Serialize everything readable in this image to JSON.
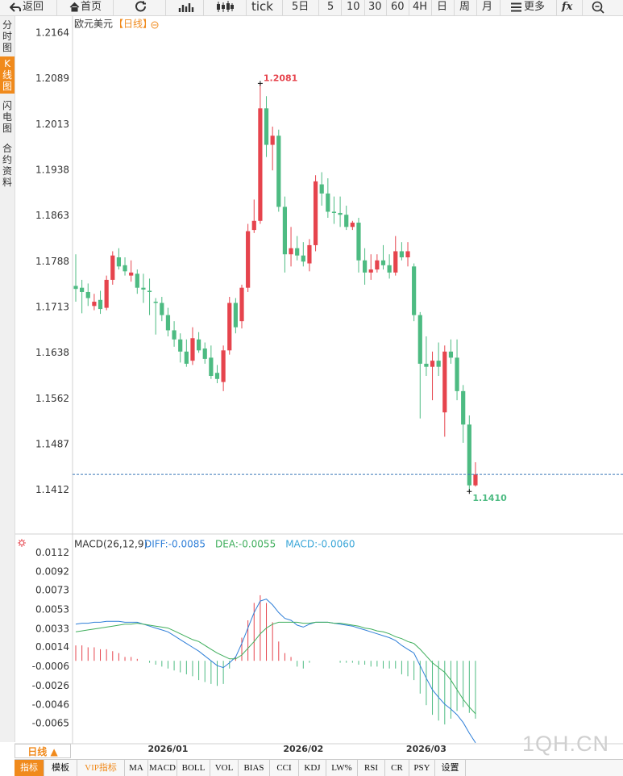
{
  "toolbar": [
    "返回",
    "首页",
    "tick",
    "5日",
    "5",
    "10",
    "30",
    "60",
    "4H",
    "日",
    "周",
    "月",
    "更多",
    "fx"
  ],
  "sidebar": [
    "分时图",
    "K线图",
    "闪电图",
    "合约资料"
  ],
  "chart_data": [
    {
      "type": "candlestick",
      "title": "欧元美元",
      "subtitle": "【日线】",
      "categories": [
        null,
        null,
        null,
        null,
        null,
        null,
        null,
        null,
        null,
        null,
        null,
        null,
        null,
        null,
        null,
        "2026/01",
        null,
        null,
        null,
        null,
        null,
        null,
        null,
        null,
        null,
        null,
        null,
        null,
        null,
        null,
        null,
        null,
        null,
        null,
        null,
        null,
        null,
        "2026/02",
        null,
        null,
        null,
        null,
        null,
        null,
        null,
        null,
        null,
        null,
        null,
        null,
        null,
        null,
        null,
        null,
        null,
        null,
        null,
        "2026/03",
        null,
        null,
        null,
        null,
        null,
        null,
        null,
        null
      ],
      "open": [
        1.1748,
        1.1745,
        1.1738,
        1.1715,
        1.1725,
        1.1712,
        1.1758,
        1.1795,
        1.1782,
        1.1765,
        1.1768,
        1.1745,
        1.174,
        1.1722,
        1.172,
        1.17,
        1.1675,
        1.166,
        1.164,
        1.1625,
        1.166,
        1.1645,
        1.163,
        1.1605,
        1.159,
        1.1642,
        1.172,
        1.169,
        1.1745,
        1.184,
        1.1855,
        1.204,
        1.198,
        1.1995,
        1.1878,
        1.18,
        1.181,
        1.1798,
        1.1785,
        1.1815,
        1.1915,
        1.19,
        1.187,
        1.1868,
        1.1865,
        1.1845,
        1.1852,
        1.179,
        1.177,
        1.1775,
        1.179,
        1.1782,
        1.177,
        1.1805,
        1.1795,
        1.178,
        1.17,
        1.162,
        1.1615,
        1.1625,
        1.154,
        1.164,
        1.163,
        1.1575,
        1.152,
        1.142
      ],
      "high": [
        1.18,
        1.1758,
        1.1752,
        1.1735,
        1.174,
        1.1765,
        1.1805,
        1.181,
        1.1795,
        1.179,
        1.1775,
        1.1768,
        1.176,
        1.1728,
        1.173,
        1.1712,
        1.169,
        1.167,
        1.166,
        1.168,
        1.1672,
        1.1655,
        1.165,
        1.1618,
        1.165,
        1.173,
        1.1728,
        1.175,
        1.185,
        1.189,
        1.2081,
        1.206,
        1.201,
        1.2005,
        1.1895,
        1.1845,
        1.183,
        1.182,
        1.1825,
        1.193,
        1.1935,
        1.1925,
        1.1895,
        1.1895,
        1.188,
        1.1855,
        1.186,
        1.181,
        1.18,
        1.18,
        1.1815,
        1.18,
        1.183,
        1.182,
        1.182,
        1.1785,
        1.1705,
        1.1665,
        1.164,
        1.1655,
        1.165,
        1.166,
        1.166,
        1.1585,
        1.1535,
        1.1458
      ],
      "low": [
        1.1722,
        1.1703,
        1.1715,
        1.1708,
        1.1702,
        1.1708,
        1.175,
        1.1775,
        1.1765,
        1.1755,
        1.1735,
        1.172,
        1.17,
        1.1668,
        1.169,
        1.1665,
        1.1648,
        1.1622,
        1.1615,
        1.1618,
        1.1638,
        1.162,
        1.1595,
        1.1588,
        1.1575,
        1.1635,
        1.167,
        1.1678,
        1.1738,
        1.1835,
        1.185,
        1.196,
        1.1938,
        1.187,
        1.177,
        1.178,
        1.179,
        1.178,
        1.1772,
        1.1805,
        1.188,
        1.186,
        1.185,
        1.1845,
        1.184,
        1.184,
        1.177,
        1.175,
        1.1758,
        1.177,
        1.1775,
        1.176,
        1.1765,
        1.179,
        1.178,
        1.169,
        1.153,
        1.16,
        1.156,
        1.16,
        1.15,
        1.162,
        1.156,
        1.149,
        1.141,
        1.1418
      ],
      "close": [
        1.1743,
        1.1738,
        1.1728,
        1.1722,
        1.171,
        1.1758,
        1.1798,
        1.178,
        1.1772,
        1.177,
        1.1745,
        1.1742,
        1.1738,
        1.172,
        1.17,
        1.1675,
        1.166,
        1.164,
        1.162,
        1.1662,
        1.1642,
        1.1628,
        1.16,
        1.1595,
        1.1642,
        1.172,
        1.168,
        1.1745,
        1.1838,
        1.1855,
        1.204,
        1.198,
        1.1995,
        1.1878,
        1.18,
        1.181,
        1.1798,
        1.1788,
        1.1815,
        1.192,
        1.19,
        1.187,
        1.1868,
        1.1865,
        1.1845,
        1.1852,
        1.179,
        1.177,
        1.1775,
        1.179,
        1.1782,
        1.177,
        1.1805,
        1.1795,
        1.1805,
        1.17,
        1.162,
        1.1615,
        1.1625,
        1.1615,
        1.164,
        1.163,
        1.1575,
        1.152,
        1.142,
        1.1438
      ],
      "up_color": "#e6444d",
      "down_color": "#4dbb82",
      "ylim": [
        1.134,
        1.2189
      ],
      "yticks": [
        1.2164,
        1.2089,
        1.2013,
        1.1938,
        1.1863,
        1.1788,
        1.1713,
        1.1638,
        1.1562,
        1.1487,
        1.1412
      ],
      "annotations": [
        {
          "value": 1.2081,
          "label": "1.2081"
        },
        {
          "value": 1.141,
          "label": "1.1410"
        }
      ]
    },
    {
      "type": "macd",
      "title": "MACD(26,12,9)",
      "series": [
        {
          "label": "DIFF:-0.0085",
          "color": "#2f7fd8",
          "values": [
            0.0038,
            0.0039,
            0.0039,
            0.004,
            0.004,
            0.0041,
            0.0041,
            0.0041,
            0.004,
            0.004,
            0.004,
            0.0038,
            0.0036,
            0.0034,
            0.0032,
            0.003,
            0.0026,
            0.0022,
            0.0018,
            0.0014,
            0.001,
            0.0005,
            0.0,
            -0.0005,
            -0.0007,
            -0.0002,
            0.0004,
            0.0018,
            0.0034,
            0.005,
            0.0062,
            0.0064,
            0.0058,
            0.005,
            0.0044,
            0.0042,
            0.0037,
            0.0035,
            0.0038,
            0.004,
            0.004,
            0.004,
            0.0039,
            0.0038,
            0.0037,
            0.0036,
            0.0034,
            0.0032,
            0.003,
            0.0028,
            0.0026,
            0.0024,
            0.0021,
            0.0016,
            0.0012,
            0.0008,
            -0.0005,
            -0.0018,
            -0.003,
            -0.0038,
            -0.0045,
            -0.005,
            -0.0056,
            -0.0064,
            -0.0075,
            -0.0085
          ]
        },
        {
          "label": "DEA:-0.0055",
          "color": "#3fae5c",
          "values": [
            0.003,
            0.0031,
            0.0032,
            0.0033,
            0.0034,
            0.0035,
            0.0036,
            0.0037,
            0.0038,
            0.0038,
            0.0039,
            0.0038,
            0.0037,
            0.0036,
            0.0035,
            0.0034,
            0.0031,
            0.0028,
            0.0025,
            0.0022,
            0.002,
            0.0016,
            0.0012,
            0.0008,
            0.0005,
            0.0002,
            0.0002,
            0.0006,
            0.0013,
            0.002,
            0.0028,
            0.0034,
            0.0038,
            0.004,
            0.004,
            0.004,
            0.004,
            0.0039,
            0.0039,
            0.004,
            0.004,
            0.004,
            0.0039,
            0.0039,
            0.0038,
            0.0037,
            0.0036,
            0.0034,
            0.0033,
            0.0031,
            0.003,
            0.0028,
            0.0025,
            0.0023,
            0.002,
            0.0018,
            0.0012,
            0.0005,
            -0.0002,
            -0.0007,
            -0.0012,
            -0.002,
            -0.003,
            -0.004,
            -0.0048,
            -0.0055
          ]
        },
        {
          "label": "MACD:-0.0060",
          "color": "#3aa6d8",
          "values": [
            0.0016,
            0.0016,
            0.0014,
            0.0014,
            0.0012,
            0.0012,
            0.001,
            0.0008,
            0.0004,
            0.0004,
            0.0002,
            0.0,
            -0.0002,
            -0.0004,
            -0.0006,
            -0.0008,
            -0.001,
            -0.0012,
            -0.0014,
            -0.0016,
            -0.002,
            -0.0022,
            -0.0024,
            -0.0026,
            -0.0024,
            -0.0008,
            0.0004,
            0.0024,
            0.0042,
            0.006,
            0.0068,
            0.006,
            0.004,
            0.002,
            0.0008,
            0.0004,
            -0.0006,
            -0.0008,
            -0.0002,
            0.0,
            0.0,
            0.0,
            0.0,
            -0.0002,
            -0.0002,
            -0.0002,
            -0.0004,
            -0.0004,
            -0.0006,
            -0.0006,
            -0.0008,
            -0.0008,
            -0.0008,
            -0.0014,
            -0.0016,
            -0.002,
            -0.0034,
            -0.0046,
            -0.0056,
            -0.0062,
            -0.0066,
            -0.006,
            -0.0052,
            -0.0048,
            -0.0054,
            -0.006
          ]
        }
      ],
      "up_color": "#e6444d",
      "down_color": "#4dbb82",
      "ylim": [
        -0.0086,
        0.0129
      ],
      "yticks": [
        0.0112,
        0.0092,
        0.0073,
        0.0053,
        0.0033,
        0.0014,
        -0.0006,
        -0.0026,
        -0.0046,
        -0.0065
      ]
    }
  ],
  "period_label": "日线 ▲",
  "watermark": "1QH.CN",
  "tabs": [
    "指标",
    "模板",
    "VIP指标",
    "MA",
    "MACD",
    "BOLL",
    "VOL",
    "BIAS",
    "CCI",
    "KDJ",
    "LW%",
    "RSI",
    "CR",
    "PSY",
    "设置"
  ]
}
